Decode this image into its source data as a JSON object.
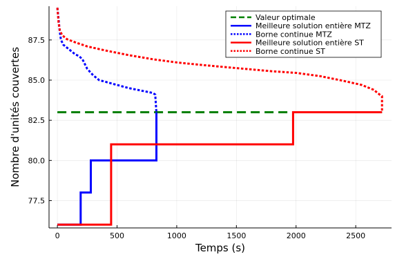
{
  "chart_data": {
    "type": "line",
    "title": "",
    "xlabel": "Temps (s)",
    "ylabel": "Nombre d'unités couvertes",
    "xlim": [
      -70,
      2800
    ],
    "ylim": [
      75.8,
      89.6
    ],
    "xticks": [
      0,
      500,
      1000,
      1500,
      2000,
      2500
    ],
    "xtick_labels": [
      "0",
      "500",
      "1000",
      "1500",
      "2000",
      "2500"
    ],
    "yticks": [
      77.5,
      80.0,
      82.5,
      85.0,
      87.5
    ],
    "ytick_labels": [
      "77.5",
      "80.0",
      "82.5",
      "85.0",
      "87.5"
    ],
    "grid": true,
    "legend_position": "top-right",
    "series": [
      {
        "name": "Valeur optimale",
        "color": "#008000",
        "style": "dashed",
        "step": false,
        "x": [
          0,
          2720
        ],
        "y": [
          83,
          83
        ]
      },
      {
        "name": "Meilleure solution entière MTZ",
        "color": "#0000ff",
        "style": "solid",
        "step": true,
        "x": [
          0,
          195,
          280,
          830,
          830
        ],
        "y": [
          76,
          78,
          80,
          83,
          83
        ]
      },
      {
        "name": "Borne continue MTZ",
        "color": "#0000ff",
        "style": "dotted",
        "step": false,
        "x": [
          0,
          10,
          20,
          30,
          50,
          100,
          150,
          180,
          210,
          250,
          300,
          350,
          400,
          450,
          500,
          600,
          700,
          800,
          820,
          825,
          830
        ],
        "y": [
          89.5,
          88.8,
          88.0,
          87.5,
          87.2,
          86.9,
          86.6,
          86.5,
          86.3,
          85.7,
          85.3,
          85.0,
          84.9,
          84.8,
          84.7,
          84.5,
          84.35,
          84.2,
          84.1,
          83.5,
          83.0
        ]
      },
      {
        "name": "Meilleure solution entière ST",
        "color": "#ff0000",
        "style": "solid",
        "step": true,
        "x": [
          0,
          450,
          1975,
          2720
        ],
        "y": [
          76,
          81,
          83,
          83
        ]
      },
      {
        "name": "Borne continue ST",
        "color": "#ff0000",
        "style": "dotted",
        "step": false,
        "x": [
          0,
          10,
          20,
          40,
          80,
          150,
          250,
          400,
          600,
          800,
          1000,
          1200,
          1500,
          1800,
          2000,
          2200,
          2400,
          2550,
          2650,
          2700,
          2720,
          2720
        ],
        "y": [
          89.5,
          88.6,
          88.1,
          87.8,
          87.55,
          87.35,
          87.1,
          86.85,
          86.55,
          86.3,
          86.1,
          85.95,
          85.75,
          85.55,
          85.45,
          85.25,
          84.95,
          84.7,
          84.4,
          84.1,
          84.0,
          83.0
        ]
      }
    ]
  }
}
